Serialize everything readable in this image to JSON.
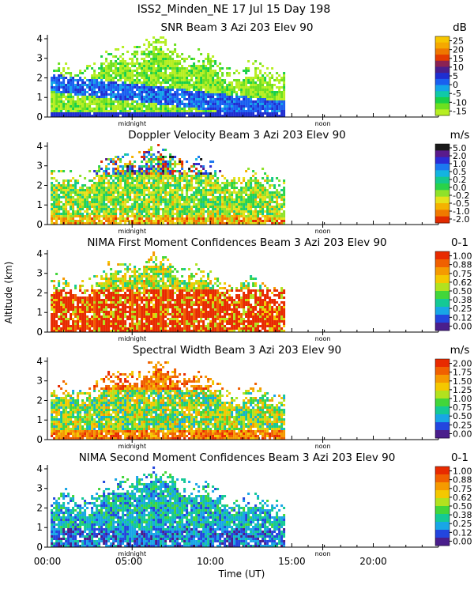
{
  "figure": {
    "main_title": "ISS2_Minden_NE  17 Jul 15 Day 198",
    "xlabel": "Time (UT)",
    "ylabel": "Altitude (km)",
    "x_tick_labels": [
      "00:00",
      "05:00",
      "10:00",
      "15:00",
      "20:00"
    ],
    "y_tick_labels": [
      "0",
      "1",
      "2",
      "3",
      "4"
    ],
    "midnight_label": "midnight",
    "noon_label": "noon"
  },
  "chart_data": [
    {
      "type": "heatmap",
      "title": "SNR Beam 3 Azi 203 Elev 90",
      "unit": "dB",
      "xlabel": "",
      "ylabel": "",
      "x_range_hours": [
        0,
        24
      ],
      "y_range_km": [
        0,
        4.2
      ],
      "data_coverage_hours": [
        0.2,
        14.6
      ],
      "colorbar_labels": [
        "25",
        "20",
        "15",
        "10",
        "5",
        "0",
        "-5",
        "-10",
        "-15"
      ],
      "colors": [
        "#f6c600",
        "#f5a800",
        "#ee7700",
        "#e43b00",
        "#8b2252",
        "#4a1e8c",
        "#1f2ed1",
        "#1a5ff0",
        "#13a4e8",
        "#10c9a8",
        "#18d048",
        "#6ce020",
        "#b6ee22"
      ],
      "profile": "snr"
    },
    {
      "type": "heatmap",
      "title": "Doppler Velocity Beam 3 Azi 203 Elev 90",
      "unit": "m/s",
      "xlabel": "",
      "ylabel": "",
      "x_range_hours": [
        0,
        24
      ],
      "y_range_km": [
        0,
        4.2
      ],
      "data_coverage_hours": [
        0.2,
        14.6
      ],
      "colorbar_labels": [
        "5.0",
        "2.0",
        "1.0",
        "0.5",
        "0.2",
        "0.0",
        "-0.2",
        "-0.5",
        "-1.0",
        "-2.0"
      ],
      "colors": [
        "#1a1a1a",
        "#5a1a8c",
        "#2b2bd6",
        "#1b78f0",
        "#13b4e0",
        "#14c98c",
        "#29d24a",
        "#8fe22a",
        "#e5e21a",
        "#f4b200",
        "#f07a00",
        "#e22a00"
      ],
      "profile": "doppler"
    },
    {
      "type": "heatmap",
      "title": "NIMA First Moment Confidences Beam 3 Azi 203 Elev 90",
      "unit": "0-1",
      "xlabel": "",
      "ylabel": "",
      "x_range_hours": [
        0,
        24
      ],
      "y_range_km": [
        0,
        4.2
      ],
      "data_coverage_hours": [
        0.2,
        14.6
      ],
      "colorbar_labels": [
        "1.00",
        "0.88",
        "0.75",
        "0.62",
        "0.50",
        "0.38",
        "0.25",
        "0.12",
        "0.00"
      ],
      "colors": [
        "#e82a00",
        "#f06000",
        "#f59a00",
        "#f4c800",
        "#b2e21e",
        "#42d63a",
        "#14c995",
        "#18a6e6",
        "#2346de",
        "#4a1e8c"
      ],
      "profile": "first_conf"
    },
    {
      "type": "heatmap",
      "title": "Spectral Width Beam 3 Azi 203 Elev 90",
      "unit": "m/s",
      "xlabel": "",
      "ylabel": "",
      "x_range_hours": [
        0,
        24
      ],
      "y_range_km": [
        0,
        4.2
      ],
      "data_coverage_hours": [
        0.2,
        14.6
      ],
      "colorbar_labels": [
        "2.00",
        "1.75",
        "1.50",
        "1.25",
        "1.00",
        "0.75",
        "0.50",
        "0.25",
        "0.00"
      ],
      "colors": [
        "#e82a00",
        "#f06000",
        "#f59a00",
        "#f4c800",
        "#b2e21e",
        "#42d63a",
        "#14c995",
        "#18a6e6",
        "#2346de",
        "#4a1e8c"
      ],
      "profile": "width"
    },
    {
      "type": "heatmap",
      "title": "NIMA Second Moment Confidences Beam 3 Azi 203 Elev 90",
      "unit": "0-1",
      "xlabel": "",
      "ylabel": "",
      "x_range_hours": [
        0,
        24
      ],
      "y_range_km": [
        0,
        4.2
      ],
      "data_coverage_hours": [
        0.2,
        14.6
      ],
      "colorbar_labels": [
        "1.00",
        "0.88",
        "0.75",
        "0.62",
        "0.50",
        "0.38",
        "0.25",
        "0.12",
        "0.00"
      ],
      "colors": [
        "#e82a00",
        "#f06000",
        "#f59a00",
        "#f4c800",
        "#b2e21e",
        "#42d63a",
        "#14c995",
        "#18a6e6",
        "#2346de",
        "#4a1e8c"
      ],
      "profile": "second_conf"
    }
  ]
}
